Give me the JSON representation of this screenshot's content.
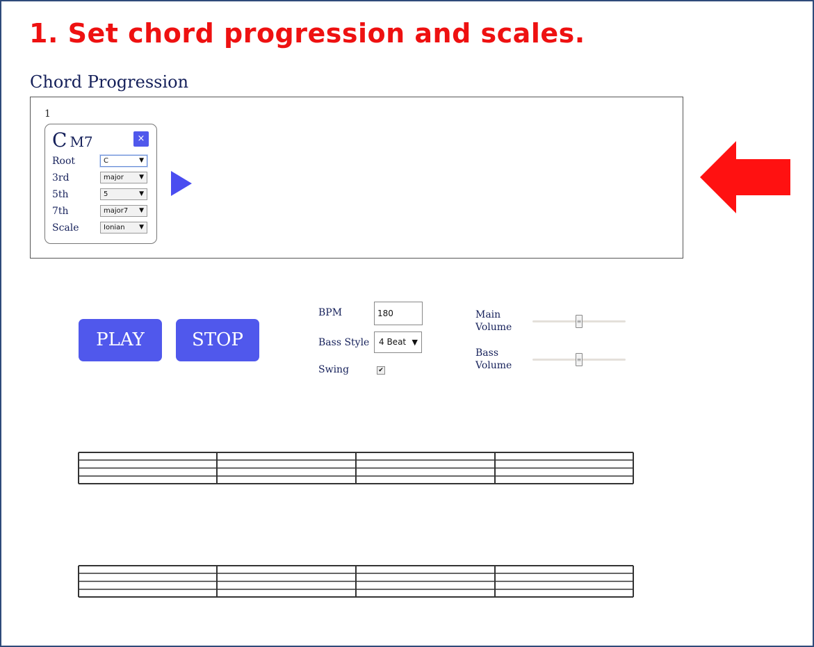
{
  "instruction": "1. Set chord progression and scales.",
  "section_title": "Chord Progression",
  "progression": {
    "bar_number": "1",
    "chord": {
      "root": "C",
      "quality": "M7",
      "close_label": "×",
      "params": [
        {
          "label": "Root",
          "value": "C"
        },
        {
          "label": "3rd",
          "value": "major"
        },
        {
          "label": "5th",
          "value": "5"
        },
        {
          "label": "7th",
          "value": "major7"
        },
        {
          "label": "Scale",
          "value": "Ionian"
        }
      ]
    }
  },
  "transport": {
    "play_label": "PLAY",
    "stop_label": "STOP"
  },
  "controls": {
    "bpm_label": "BPM",
    "bpm_value": "180",
    "bass_style_label": "Bass Style",
    "bass_style_value": "4 Beat",
    "swing_label": "Swing",
    "swing_checked": true,
    "main_volume_label_1": "Main",
    "main_volume_label_2": "Volume",
    "main_volume_value": 0.5,
    "bass_volume_label_1": "Bass",
    "bass_volume_label_2": "Volume",
    "bass_volume_value": 0.5
  },
  "colors": {
    "instruction": "#ee1111",
    "accent": "#5058ec",
    "arrow": "#ff1111",
    "text": "#15205a"
  }
}
